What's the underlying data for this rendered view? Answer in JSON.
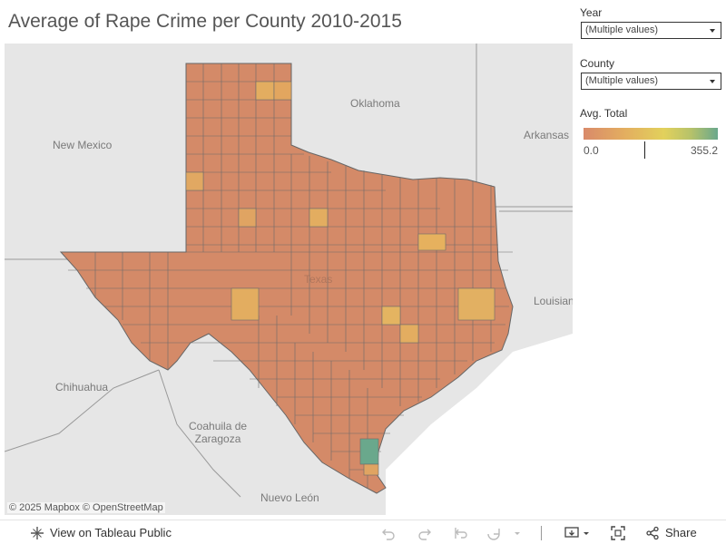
{
  "title": "Average of Rape Crime per County 2010-2015",
  "filters": {
    "year": {
      "label": "Year",
      "value": "(Multiple values)"
    },
    "county": {
      "label": "County",
      "value": "(Multiple values)"
    }
  },
  "legend": {
    "title": "Avg. Total",
    "min": "0.0",
    "max": "355.2",
    "colors": [
      "#d98a6a",
      "#e3ad60",
      "#e2d15c",
      "#6aa88c"
    ]
  },
  "map": {
    "place_labels": {
      "oklahoma": "Oklahoma",
      "new_mexico": "New Mexico",
      "arkansas": "Arkansas",
      "louisiana": "Louisian",
      "chihuahua": "Chihuahua",
      "coahuila": "Coahuila de\nZaragoza",
      "nuevo_leon": "Nuevo León",
      "texas": "Texas"
    },
    "attribution": "© 2025 Mapbox  © OpenStreetMap"
  },
  "footer": {
    "view_label": "View on Tableau Public",
    "share_label": "Share"
  }
}
